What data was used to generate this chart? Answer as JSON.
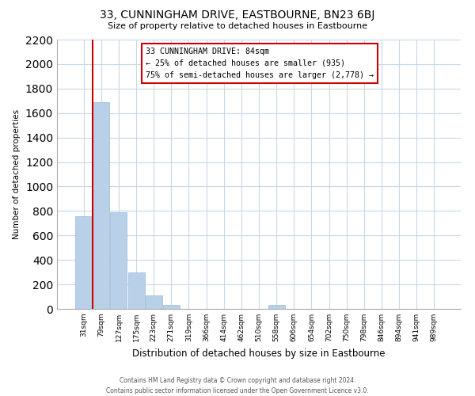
{
  "title": "33, CUNNINGHAM DRIVE, EASTBOURNE, BN23 6BJ",
  "subtitle": "Size of property relative to detached houses in Eastbourne",
  "xlabel": "Distribution of detached houses by size in Eastbourne",
  "ylabel": "Number of detached properties",
  "bar_labels": [
    "31sqm",
    "79sqm",
    "127sqm",
    "175sqm",
    "223sqm",
    "271sqm",
    "319sqm",
    "366sqm",
    "414sqm",
    "462sqm",
    "510sqm",
    "558sqm",
    "606sqm",
    "654sqm",
    "702sqm",
    "750sqm",
    "798sqm",
    "846sqm",
    "894sqm",
    "941sqm",
    "989sqm"
  ],
  "bar_values": [
    760,
    1690,
    790,
    300,
    110,
    35,
    0,
    0,
    0,
    0,
    0,
    30,
    0,
    0,
    0,
    0,
    0,
    0,
    0,
    0,
    0
  ],
  "bar_color": "#b8d0e8",
  "bar_edgecolor": "#9ab8d8",
  "property_label": "33 CUNNINGHAM DRIVE: 84sqm",
  "annotation_line1": "← 25% of detached houses are smaller (935)",
  "annotation_line2": "75% of semi-detached houses are larger (2,778) →",
  "annotation_box_edgecolor": "#cc0000",
  "vline_color": "#cc0000",
  "ylim": [
    0,
    2200
  ],
  "yticks": [
    0,
    200,
    400,
    600,
    800,
    1000,
    1200,
    1400,
    1600,
    1800,
    2000,
    2200
  ],
  "grid_color": "#c8d8e8",
  "background_color": "#ffffff",
  "footer_line1": "Contains HM Land Registry data © Crown copyright and database right 2024.",
  "footer_line2": "Contains public sector information licensed under the Open Government Licence v3.0."
}
